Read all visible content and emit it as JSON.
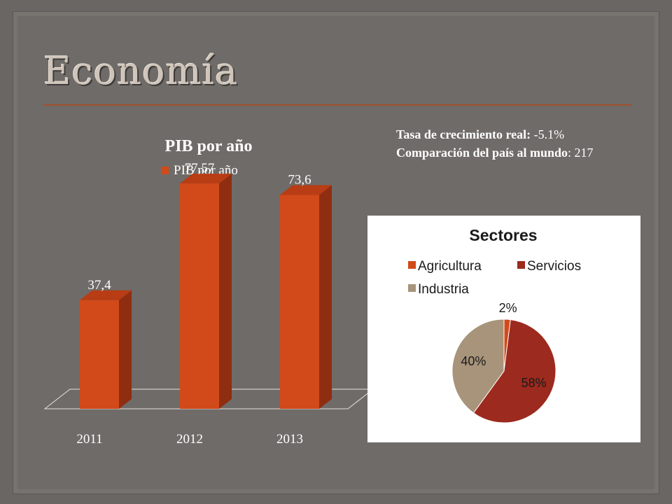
{
  "slide": {
    "title": "Economía",
    "growth_label": "Tasa de crecimiento real:",
    "growth_value": "-5.1%",
    "compare_label": "Comparación del país al mundo",
    "compare_value": ": 217"
  },
  "chart_data": [
    {
      "type": "bar",
      "title": "PIB por año",
      "categories": [
        "2011",
        "2012",
        "2013"
      ],
      "series": [
        {
          "name": "PIB por año",
          "values": [
            37.4,
            77.57,
            73.6
          ],
          "labels": [
            "37,4",
            "77,57",
            "73,6"
          ]
        }
      ],
      "ylim": [
        0,
        80
      ],
      "legend": "top",
      "grid": false,
      "colors": {
        "front": "#d24a1a",
        "side": "#8f2d10",
        "top": "#b83c14"
      }
    },
    {
      "type": "pie",
      "title": "Sectores",
      "categories": [
        "Agricultura",
        "Servicios",
        "Industria"
      ],
      "values": [
        2,
        58,
        40
      ],
      "labels": [
        "2%",
        "58%",
        "40%"
      ],
      "colors": [
        "#d24a1a",
        "#9c2a1e",
        "#a7947a"
      ],
      "legend": "top"
    }
  ]
}
